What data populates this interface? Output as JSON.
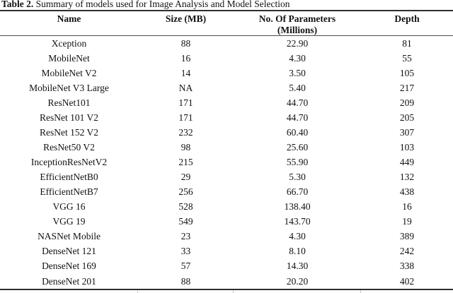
{
  "caption": {
    "label": "Table 2.",
    "text": " Summary of models used for Image Analysis and Model Selection"
  },
  "columns": {
    "name": "Name",
    "size": "Size (MB)",
    "params_line1": "No. Of Parameters",
    "params_line2": "(Millions)",
    "depth": "Depth"
  },
  "rows": [
    [
      "Xception",
      "88",
      "22.90",
      "81"
    ],
    [
      "MobileNet",
      "16",
      "4.30",
      "55"
    ],
    [
      "MobileNet V2",
      "14",
      "3.50",
      "105"
    ],
    [
      "MobileNet V3 Large",
      "NA",
      "5.40",
      "217"
    ],
    [
      "ResNet101",
      "171",
      "44.70",
      "209"
    ],
    [
      "ResNet 101 V2",
      "171",
      "44.70",
      "205"
    ],
    [
      "ResNet 152 V2",
      "232",
      "60.40",
      "307"
    ],
    [
      "ResNet50 V2",
      "98",
      "25.60",
      "103"
    ],
    [
      "InceptionResNetV2",
      "215",
      "55.90",
      "449"
    ],
    [
      "EfficientNetB0",
      "29",
      "5.30",
      "132"
    ],
    [
      "EfficientNetB7",
      "256",
      "66.70",
      "438"
    ],
    [
      "VGG 16",
      "528",
      "138.40",
      "16"
    ],
    [
      "VGG 19",
      "549",
      "143.70",
      "19"
    ],
    [
      "NASNet Mobile",
      "23",
      "4.30",
      "389"
    ],
    [
      "DenseNet 121",
      "33",
      "8.10",
      "242"
    ],
    [
      "DenseNet 169",
      "57",
      "14.30",
      "338"
    ],
    [
      "DenseNet 201",
      "88",
      "20.20",
      "402"
    ]
  ],
  "chart_data": {
    "type": "table",
    "title": "Table 2. Summary of models used for Image Analysis and Model Selection",
    "column_headers": [
      "Name",
      "Size (MB)",
      "No. Of Parameters (Millions)",
      "Depth"
    ],
    "rows": [
      [
        "Xception",
        "88",
        "22.90",
        "81"
      ],
      [
        "MobileNet",
        "16",
        "4.30",
        "55"
      ],
      [
        "MobileNet V2",
        "14",
        "3.50",
        "105"
      ],
      [
        "MobileNet V3 Large",
        "NA",
        "5.40",
        "217"
      ],
      [
        "ResNet101",
        "171",
        "44.70",
        "209"
      ],
      [
        "ResNet 101 V2",
        "171",
        "44.70",
        "205"
      ],
      [
        "ResNet 152 V2",
        "232",
        "60.40",
        "307"
      ],
      [
        "ResNet50 V2",
        "98",
        "25.60",
        "103"
      ],
      [
        "InceptionResNetV2",
        "215",
        "55.90",
        "449"
      ],
      [
        "EfficientNetB0",
        "29",
        "5.30",
        "132"
      ],
      [
        "EfficientNetB7",
        "256",
        "66.70",
        "438"
      ],
      [
        "VGG 16",
        "528",
        "138.40",
        "16"
      ],
      [
        "VGG 19",
        "549",
        "143.70",
        "19"
      ],
      [
        "NASNet Mobile",
        "23",
        "4.30",
        "389"
      ],
      [
        "DenseNet 121",
        "33",
        "8.10",
        "242"
      ],
      [
        "DenseNet 169",
        "57",
        "14.30",
        "338"
      ],
      [
        "DenseNet 201",
        "88",
        "20.20",
        "402"
      ]
    ]
  }
}
